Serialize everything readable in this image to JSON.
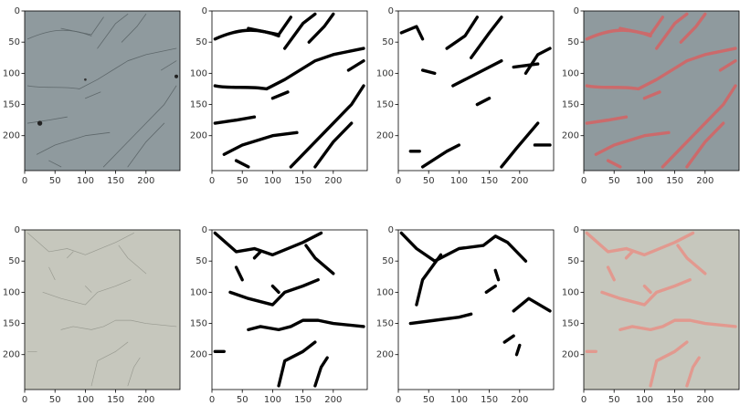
{
  "panels": [
    {
      "xticks": [
        0,
        50,
        100,
        150,
        200
      ],
      "yticks": [
        0,
        50,
        100,
        150,
        200
      ],
      "xlim": [
        0,
        256
      ],
      "ylim": [
        256,
        0
      ]
    },
    {
      "xticks": [
        0,
        50,
        100,
        150,
        200
      ],
      "yticks": [
        0,
        50,
        100,
        150,
        200
      ],
      "xlim": [
        0,
        256
      ],
      "ylim": [
        256,
        0
      ]
    },
    {
      "xticks": [
        0,
        50,
        100,
        150,
        200
      ],
      "yticks": [
        0,
        50,
        100,
        150,
        200
      ],
      "xlim": [
        0,
        256
      ],
      "ylim": [
        256,
        0
      ]
    },
    {
      "xticks": [
        0,
        50,
        100,
        150,
        200
      ],
      "yticks": [
        0,
        50,
        100,
        150,
        200
      ],
      "xlim": [
        0,
        256
      ],
      "ylim": [
        256,
        0
      ]
    },
    {
      "xticks": [
        0,
        50,
        100,
        150,
        200
      ],
      "yticks": [
        0,
        50,
        100,
        150,
        200
      ],
      "xlim": [
        0,
        256
      ],
      "ylim": [
        256,
        0
      ]
    },
    {
      "xticks": [
        0,
        50,
        100,
        150,
        200
      ],
      "yticks": [
        0,
        50,
        100,
        150,
        200
      ],
      "xlim": [
        0,
        256
      ],
      "ylim": [
        256,
        0
      ]
    },
    {
      "xticks": [
        0,
        50,
        100,
        150,
        200
      ],
      "yticks": [
        0,
        50,
        100,
        150,
        200
      ],
      "xlim": [
        0,
        256
      ],
      "ylim": [
        256,
        0
      ]
    },
    {
      "xticks": [
        0,
        50,
        100,
        150,
        200
      ],
      "yticks": [
        0,
        50,
        100,
        150,
        200
      ],
      "xlim": [
        0,
        256
      ],
      "ylim": [
        256,
        0
      ]
    }
  ]
}
